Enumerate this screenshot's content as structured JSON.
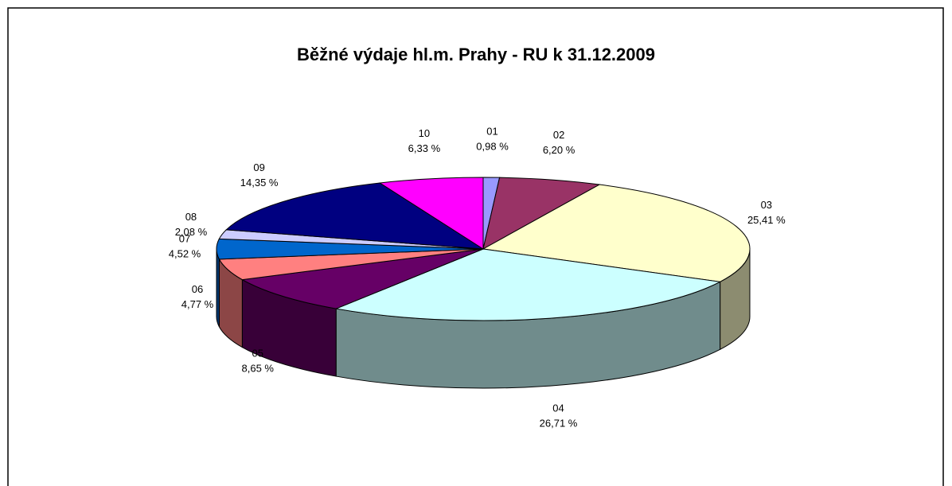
{
  "chart_data": {
    "type": "pie3d",
    "title": "Běžné výdaje hl.m. Prahy - RU k 31.12.2009",
    "categories": [
      "01",
      "02",
      "03",
      "04",
      "05",
      "06",
      "07",
      "08",
      "09",
      "10"
    ],
    "values": [
      0.98,
      6.2,
      25.41,
      26.71,
      8.65,
      4.77,
      4.52,
      2.08,
      14.35,
      6.33
    ],
    "value_labels": [
      "0,98 %",
      "6,20 %",
      "25,41 %",
      "26,71 %",
      "8,65 %",
      "4,77 %",
      "4,52 %",
      "2,08 %",
      "14,35 %",
      "6,33 %"
    ],
    "colors": [
      "#9999ff",
      "#993366",
      "#ffffcc",
      "#ccffff",
      "#660066",
      "#ff8080",
      "#0066cc",
      "#ccccff",
      "#000080",
      "#ff00ff"
    ]
  }
}
